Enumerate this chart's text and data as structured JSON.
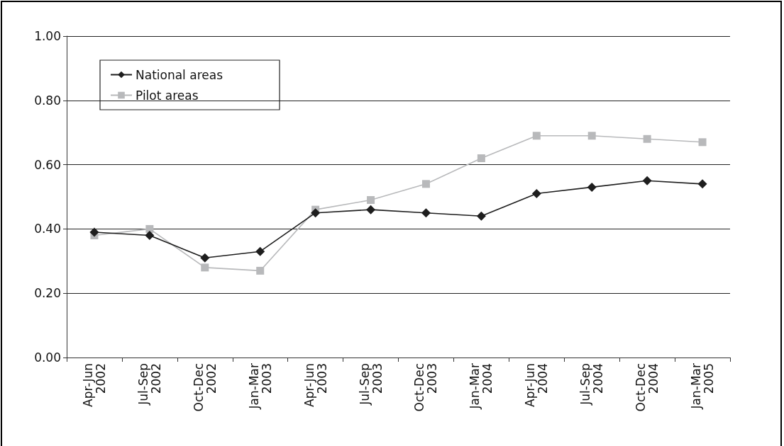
{
  "chart_data": {
    "type": "line",
    "categories": [
      "Apr-Jun 2002",
      "Jul-Sep 2002",
      "Oct-Dec 2002",
      "Jan-Mar 2003",
      "Apr-Jun 2003",
      "Jul-Sep 2003",
      "Oct-Dec 2003",
      "Jan-Mar 2004",
      "Apr-Jun 2004",
      "Jul-Sep 2004",
      "Oct-Dec 2004",
      "Jan-Mar 2005"
    ],
    "series": [
      {
        "name": "National areas",
        "color": "#1e1e1e",
        "marker": "diamond",
        "values": [
          0.39,
          0.38,
          0.31,
          0.33,
          0.45,
          0.46,
          0.45,
          0.44,
          0.51,
          0.53,
          0.55,
          0.54
        ]
      },
      {
        "name": "Pilot areas",
        "color": "#b8b9bb",
        "marker": "square",
        "values": [
          0.38,
          0.4,
          0.28,
          0.27,
          0.46,
          0.49,
          0.54,
          0.62,
          0.69,
          0.69,
          0.68,
          0.67
        ]
      }
    ],
    "ylim": [
      0,
      1
    ],
    "yticks": [
      {
        "value": 0,
        "label": "0.00"
      },
      {
        "value": 0.2,
        "label": "0.20"
      },
      {
        "value": 0.4,
        "label": "0.40"
      },
      {
        "value": 0.6,
        "label": "0.60"
      },
      {
        "value": 0.8,
        "label": "0.80"
      },
      {
        "value": 1,
        "label": "1.00"
      }
    ],
    "grid": "y",
    "legend": "top left",
    "line_style": "solid"
  }
}
